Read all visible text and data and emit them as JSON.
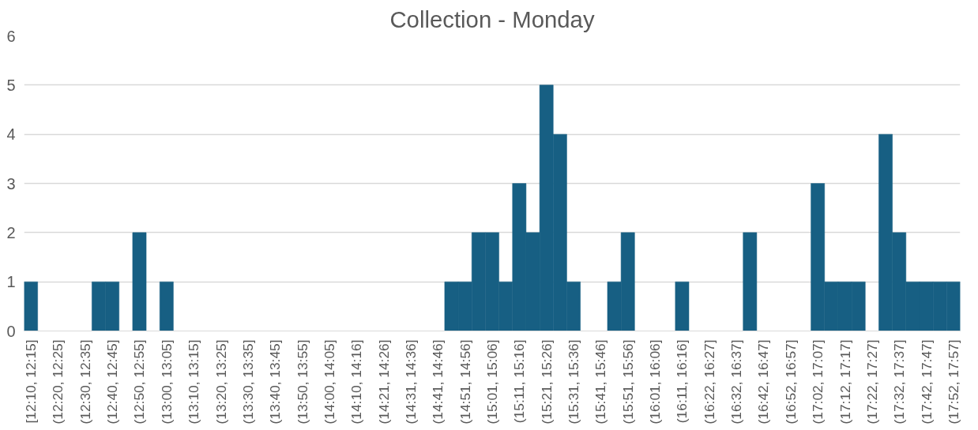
{
  "chart_data": {
    "type": "bar",
    "title": "Collection - Monday",
    "categories": [
      "[12:10, 12:15]",
      null,
      "(12:20, 12:25]",
      null,
      "(12:30, 12:35]",
      null,
      "(12:40, 12:45]",
      null,
      "(12:50, 12:55]",
      null,
      "(13:00, 13:05]",
      null,
      "(13:10, 13:15]",
      null,
      "(13:20, 13:25]",
      null,
      "(13:30, 13:35]",
      null,
      "(13:40, 13:45]",
      null,
      "(13:50, 13:55]",
      null,
      "(14:00, 14:05]",
      null,
      "(14:10, 14:16]",
      null,
      "(14:21, 14:26]",
      null,
      "(14:31, 14:36]",
      null,
      "(14:41, 14:46]",
      null,
      "(14:51, 14:56]",
      null,
      "(15:01, 15:06]",
      null,
      "(15:11, 15:16]",
      null,
      "(15:21, 15:26]",
      null,
      "(15:31, 15:36]",
      null,
      "(15:41, 15:46]",
      null,
      "(15:51, 15:56]",
      null,
      "(16:01, 16:06]",
      null,
      "(16:11, 16:16]",
      null,
      "(16:22, 16:27]",
      null,
      "(16:32, 16:37]",
      null,
      "(16:42, 16:47]",
      null,
      "(16:52, 16:57]",
      null,
      "(17:02, 17:07]",
      null,
      "(17:12, 17:17]",
      null,
      "(17:22, 17:27]",
      null,
      "(17:32, 17:37]",
      null,
      "(17:42, 17:47]",
      null,
      "(17:52, 17:57]"
    ],
    "values": [
      1,
      0,
      0,
      0,
      0,
      1,
      1,
      0,
      2,
      0,
      1,
      0,
      0,
      0,
      0,
      0,
      0,
      0,
      0,
      0,
      0,
      0,
      0,
      0,
      0,
      0,
      0,
      0,
      0,
      0,
      0,
      1,
      1,
      2,
      2,
      1,
      3,
      2,
      5,
      4,
      1,
      0,
      0,
      1,
      2,
      0,
      0,
      0,
      1,
      0,
      0,
      0,
      0,
      2,
      0,
      0,
      0,
      0,
      3,
      1,
      1,
      1,
      0,
      4,
      2,
      1,
      1,
      1,
      1
    ],
    "color": "#175f83",
    "ylim": [
      0,
      6
    ],
    "yticks": [
      0,
      1,
      2,
      3,
      4,
      5,
      6
    ],
    "grid": "y"
  }
}
